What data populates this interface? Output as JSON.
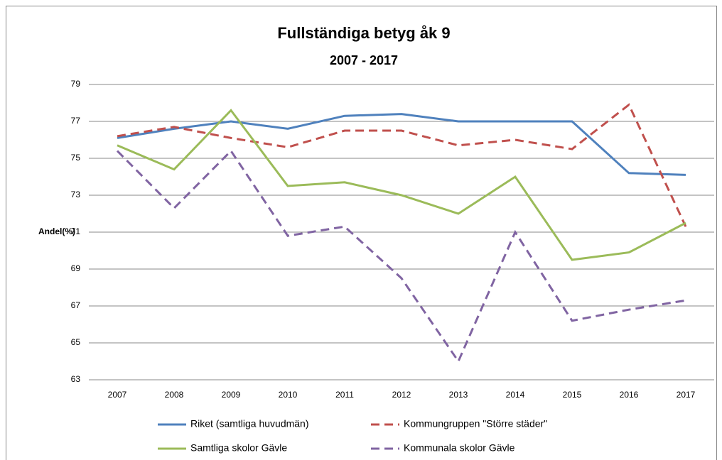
{
  "chart_data": {
    "type": "line",
    "title": "Fullständiga betyg åk 9",
    "subtitle": "2007 - 2017",
    "ylabel": "Andel(%)",
    "categories": [
      "2007",
      "2008",
      "2009",
      "2010",
      "2011",
      "2012",
      "2013",
      "2014",
      "2015",
      "2016",
      "2017"
    ],
    "ylim": [
      63,
      79
    ],
    "yticks": [
      63,
      65,
      67,
      69,
      71,
      73,
      75,
      77,
      79
    ],
    "grid": true,
    "series": [
      {
        "name": "Riket (samtliga huvudmän)",
        "color": "#4f81bd",
        "dashed": false,
        "values": [
          76.1,
          76.6,
          77.0,
          76.6,
          77.3,
          77.4,
          77.0,
          77.0,
          77.0,
          74.2,
          74.1
        ]
      },
      {
        "name": "Kommungruppen \"Större städer\"",
        "color": "#c0504d",
        "dashed": true,
        "values": [
          76.2,
          76.7,
          76.1,
          75.6,
          76.5,
          76.5,
          75.7,
          76.0,
          75.5,
          77.9,
          71.3
        ]
      },
      {
        "name": "Samtliga skolor Gävle",
        "color": "#9bbb59",
        "dashed": false,
        "values": [
          75.7,
          74.4,
          77.6,
          73.5,
          73.7,
          73.0,
          72.0,
          74.0,
          69.5,
          69.9,
          71.5
        ]
      },
      {
        "name": "Kommunala skolor Gävle",
        "color": "#8064a2",
        "dashed": true,
        "values": [
          75.4,
          72.3,
          75.4,
          70.8,
          71.3,
          68.5,
          64.0,
          71.0,
          66.2,
          66.8,
          67.3
        ]
      }
    ]
  }
}
